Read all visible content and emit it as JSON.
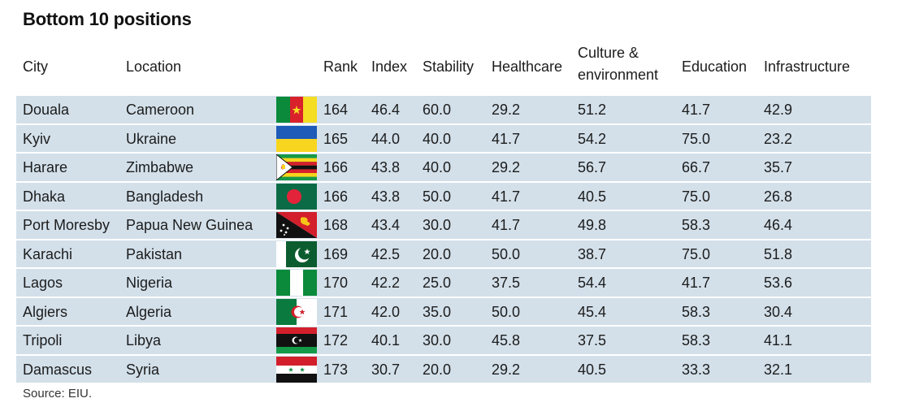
{
  "title": "Bottom 10 positions",
  "headers": {
    "city": "City",
    "location": "Location",
    "rank": "Rank",
    "index": "Index",
    "stability": "Stability",
    "healthcare": "Healthcare",
    "culture_line1": "Culture &",
    "culture_line2": "environment",
    "education": "Education",
    "infrastructure": "Infrastructure"
  },
  "rows": [
    {
      "city": "Douala",
      "location": "Cameroon",
      "flag": "cameroon-flag-icon",
      "rank": "164",
      "index": "46.4",
      "stability": "60.0",
      "healthcare": "29.2",
      "culture": "51.2",
      "education": "41.7",
      "infrastructure": "42.9"
    },
    {
      "city": "Kyiv",
      "location": "Ukraine",
      "flag": "ukraine-flag-icon",
      "rank": "165",
      "index": "44.0",
      "stability": "40.0",
      "healthcare": "41.7",
      "culture": "54.2",
      "education": "75.0",
      "infrastructure": "23.2"
    },
    {
      "city": "Harare",
      "location": "Zimbabwe",
      "flag": "zimbabwe-flag-icon",
      "rank": "166",
      "index": "43.8",
      "stability": "40.0",
      "healthcare": "29.2",
      "culture": "56.7",
      "education": "66.7",
      "infrastructure": "35.7"
    },
    {
      "city": "Dhaka",
      "location": "Bangladesh",
      "flag": "bangladesh-flag-icon",
      "rank": "166",
      "index": "43.8",
      "stability": "50.0",
      "healthcare": "41.7",
      "culture": "40.5",
      "education": "75.0",
      "infrastructure": "26.8"
    },
    {
      "city": "Port Moresby",
      "location": "Papua New Guinea",
      "flag": "papua-new-guinea-flag-icon",
      "rank": "168",
      "index": "43.4",
      "stability": "30.0",
      "healthcare": "41.7",
      "culture": "49.8",
      "education": "58.3",
      "infrastructure": "46.4"
    },
    {
      "city": "Karachi",
      "location": "Pakistan",
      "flag": "pakistan-flag-icon",
      "rank": "169",
      "index": "42.5",
      "stability": "20.0",
      "healthcare": "50.0",
      "culture": "38.7",
      "education": "75.0",
      "infrastructure": "51.8"
    },
    {
      "city": "Lagos",
      "location": "Nigeria",
      "flag": "nigeria-flag-icon",
      "rank": "170",
      "index": "42.2",
      "stability": "25.0",
      "healthcare": "37.5",
      "culture": "54.4",
      "education": "41.7",
      "infrastructure": "53.6"
    },
    {
      "city": "Algiers",
      "location": "Algeria",
      "flag": "algeria-flag-icon",
      "rank": "171",
      "index": "42.0",
      "stability": "35.0",
      "healthcare": "50.0",
      "culture": "45.4",
      "education": "58.3",
      "infrastructure": "30.4"
    },
    {
      "city": "Tripoli",
      "location": "Libya",
      "flag": "libya-flag-icon",
      "rank": "172",
      "index": "40.1",
      "stability": "30.0",
      "healthcare": "45.8",
      "culture": "37.5",
      "education": "58.3",
      "infrastructure": "41.1"
    },
    {
      "city": "Damascus",
      "location": "Syria",
      "flag": "syria-flag-icon",
      "rank": "173",
      "index": "30.7",
      "stability": "20.0",
      "healthcare": "29.2",
      "culture": "40.5",
      "education": "33.3",
      "infrastructure": "32.1"
    }
  ],
  "source": "Source: EIU.",
  "colors": {
    "row_background": "#d3e0ea",
    "text": "#1c1c1c"
  }
}
